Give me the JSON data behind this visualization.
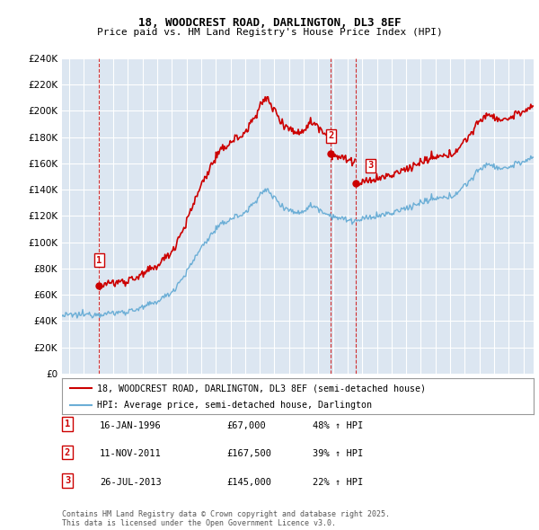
{
  "title": "18, WOODCREST ROAD, DARLINGTON, DL3 8EF",
  "subtitle": "Price paid vs. HM Land Registry's House Price Index (HPI)",
  "legend_label_red": "18, WOODCREST ROAD, DARLINGTON, DL3 8EF (semi-detached house)",
  "legend_label_blue": "HPI: Average price, semi-detached house, Darlington",
  "footer": "Contains HM Land Registry data © Crown copyright and database right 2025.\nThis data is licensed under the Open Government Licence v3.0.",
  "transactions": [
    {
      "num": 1,
      "date": "16-JAN-1996",
      "price": 67000,
      "year": 1996.04,
      "pct": "48% ↑ HPI"
    },
    {
      "num": 2,
      "date": "11-NOV-2011",
      "price": 167500,
      "year": 2011.86,
      "pct": "39% ↑ HPI"
    },
    {
      "num": 3,
      "date": "26-JUL-2013",
      "price": 145000,
      "year": 2013.56,
      "pct": "22% ↑ HPI"
    }
  ],
  "ylim": [
    0,
    240000
  ],
  "xlim_start": 1993.5,
  "xlim_end": 2025.7,
  "background_color": "#ffffff",
  "plot_bg_color": "#dce6f1",
  "grid_color": "#ffffff",
  "red_color": "#cc0000",
  "blue_color": "#6baed6",
  "title_fontsize": 9,
  "subtitle_fontsize": 8,
  "tick_fontsize": 7,
  "ytick_fontsize": 7.5
}
